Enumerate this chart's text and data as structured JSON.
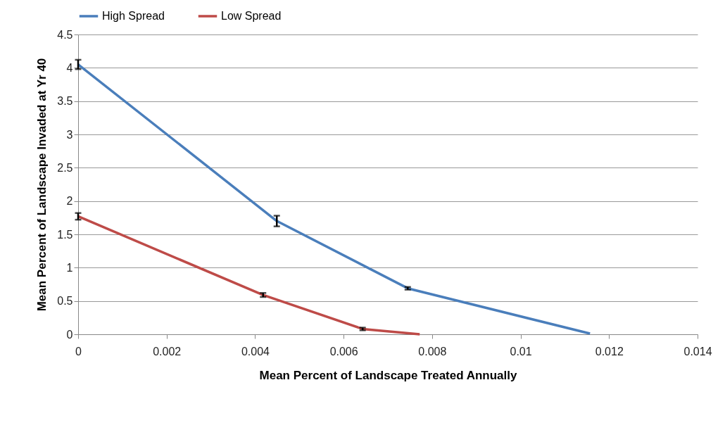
{
  "chart_data": {
    "type": "line",
    "xlabel": "Mean Percent of Landscape Treated Annually",
    "ylabel": "Mean Percent of Landscape Invaded at Yr 40",
    "series": [
      {
        "name": "High Spread",
        "color": "#4a7ebb",
        "x": [
          0,
          0.00449,
          0.00745,
          0.01157
        ],
        "values": [
          4.05,
          1.7,
          0.69,
          0.01
        ],
        "errors": [
          0.07,
          0.08,
          0.02,
          null
        ]
      },
      {
        "name": "Low Spread",
        "color": "#be4b48",
        "x": [
          0,
          0.00418,
          0.00643,
          0.00772
        ],
        "values": [
          1.77,
          0.59,
          0.08,
          0.0
        ],
        "errors": [
          0.05,
          0.03,
          0.02,
          null
        ]
      }
    ],
    "xlim": [
      0,
      0.014
    ],
    "xticks": [
      0,
      0.002,
      0.004,
      0.006,
      0.008,
      0.01,
      0.012,
      0.014
    ],
    "ylim": [
      0,
      4.5
    ],
    "yticks": [
      0,
      0.5,
      1,
      1.5,
      2,
      2.5,
      3,
      3.5,
      4,
      4.5
    ],
    "grid": "y",
    "legend": "top",
    "marker": "none",
    "line_style": "solid"
  }
}
